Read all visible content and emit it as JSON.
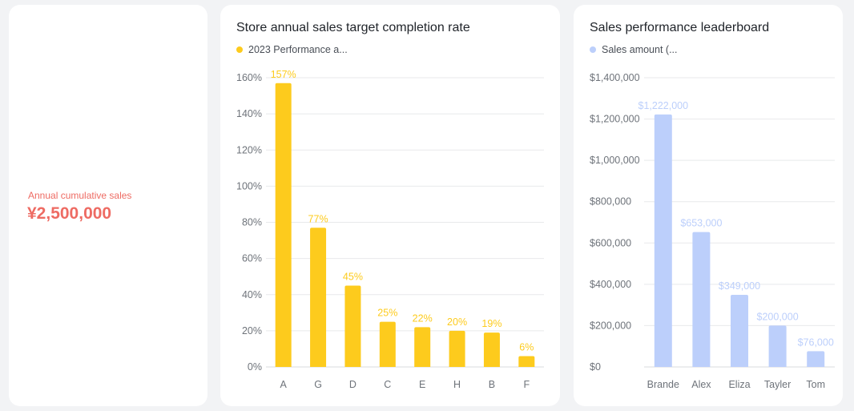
{
  "kpi": {
    "label": "Annual cumulative sales",
    "value": "¥2,500,000"
  },
  "chart_data": [
    {
      "type": "bar",
      "title": "Store annual sales target completion rate",
      "legend": "2023 Performance a...",
      "legend_placement": "top-left",
      "color": "#fdcb1d",
      "categories": [
        "A",
        "G",
        "D",
        "C",
        "E",
        "H",
        "B",
        "F"
      ],
      "values": [
        157,
        77,
        45,
        25,
        22,
        20,
        19,
        6
      ],
      "data_labels": [
        "157%",
        "77%",
        "45%",
        "25%",
        "22%",
        "20%",
        "19%",
        "6%"
      ],
      "y_ticks": [
        "0%",
        "20%",
        "40%",
        "60%",
        "80%",
        "100%",
        "120%",
        "140%",
        "160%"
      ],
      "ylim": [
        0,
        160
      ],
      "grid": true
    },
    {
      "type": "bar",
      "title": "Sales performance leaderboard",
      "legend": "Sales amount (...",
      "legend_placement": "top-left",
      "color": "#bccffb",
      "categories": [
        "Brande",
        "Alex",
        "Eliza",
        "Tayler",
        "Tom"
      ],
      "values": [
        1222000,
        653000,
        349000,
        200000,
        76000
      ],
      "data_labels": [
        "$1,222,000",
        "$653,000",
        "$349,000",
        "$200,000",
        "$76,000"
      ],
      "y_ticks": [
        "$0",
        "$200,000",
        "$400,000",
        "$600,000",
        "$800,000",
        "$1,000,000",
        "$1,200,000",
        "$1,400,000"
      ],
      "ylim": [
        0,
        1400000
      ],
      "grid": true
    }
  ]
}
